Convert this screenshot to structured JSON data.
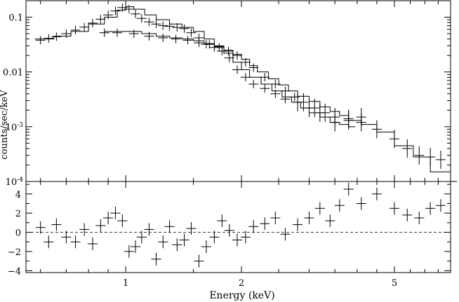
{
  "chart_data": [
    {
      "type": "scatter",
      "panel": "spectrum",
      "xscale": "log",
      "yscale": "log",
      "xlim": [
        0.55,
        7.0
      ],
      "ylim": [
        0.0001,
        0.2
      ],
      "ylabel": "counts/sec/keV",
      "ytick_labels": [
        {
          "value": 0.1,
          "label": "0.1",
          "exp": ""
        },
        {
          "value": 0.01,
          "label": "0.01",
          "exp": ""
        },
        {
          "value": 0.001,
          "label": "10",
          "exp": "-3"
        },
        {
          "value": 0.0001,
          "label": "10",
          "exp": "-4"
        }
      ],
      "series": [
        {
          "marker": "cross",
          "x": [
            0.6,
            0.63,
            0.66,
            0.7,
            0.74,
            0.78,
            0.82,
            0.86,
            0.9,
            0.94,
            0.98,
            1.02,
            1.06,
            1.1,
            1.15,
            1.2,
            1.25,
            1.3,
            1.36,
            1.42,
            1.48,
            1.55,
            1.62,
            1.7,
            1.78,
            1.86,
            1.95,
            2.05,
            2.15,
            2.3,
            2.45,
            2.6,
            2.8,
            3.0,
            3.2,
            3.5,
            3.8,
            4.1
          ],
          "y": [
            0.038,
            0.041,
            0.044,
            0.05,
            0.058,
            0.066,
            0.078,
            0.092,
            0.11,
            0.13,
            0.15,
            0.14,
            0.115,
            0.095,
            0.082,
            0.075,
            0.07,
            0.068,
            0.065,
            0.062,
            0.052,
            0.042,
            0.032,
            0.028,
            0.024,
            0.018,
            0.011,
            0.008,
            0.006,
            0.005,
            0.004,
            0.0032,
            0.0028,
            0.0022,
            0.0018,
            0.0012,
            0.0014,
            0.0015
          ]
        },
        {
          "marker": "cross",
          "x": [
            0.88,
            0.95,
            1.05,
            1.15,
            1.25,
            1.35,
            1.45,
            1.55,
            1.65,
            1.75,
            1.85,
            1.95,
            2.05,
            2.15,
            2.3,
            2.45,
            2.6,
            2.75,
            2.9,
            3.1,
            3.3,
            3.5,
            3.8,
            4.1,
            4.5,
            5.0,
            5.4,
            5.8,
            6.2,
            6.6
          ],
          "y": [
            0.052,
            0.052,
            0.05,
            0.045,
            0.042,
            0.04,
            0.038,
            0.034,
            0.032,
            0.028,
            0.024,
            0.02,
            0.015,
            0.012,
            0.008,
            0.006,
            0.0045,
            0.0035,
            0.0028,
            0.0022,
            0.0018,
            0.0015,
            0.0013,
            0.0012,
            0.0009,
            0.0006,
            0.0004,
            0.0003,
            0.00028,
            0.00025
          ]
        }
      ],
      "models": [
        {
          "style": "step",
          "x": [
            0.58,
            0.65,
            0.72,
            0.8,
            0.88,
            0.95,
            1.0,
            1.05,
            1.12,
            1.2,
            1.3,
            1.4,
            1.5,
            1.6,
            1.7,
            1.8,
            1.9,
            2.0,
            2.1,
            2.25,
            2.4,
            2.55,
            2.7,
            2.85,
            3.0,
            3.2,
            3.4,
            3.6,
            3.8
          ],
          "y": [
            0.04,
            0.045,
            0.055,
            0.075,
            0.1,
            0.135,
            0.155,
            0.14,
            0.11,
            0.09,
            0.075,
            0.065,
            0.055,
            0.04,
            0.03,
            0.022,
            0.015,
            0.011,
            0.008,
            0.006,
            0.0045,
            0.0035,
            0.0028,
            0.0022,
            0.0018,
            0.0015,
            0.0012,
            0.0011,
            0.001
          ]
        },
        {
          "style": "step",
          "x": [
            0.88,
            1.0,
            1.1,
            1.2,
            1.3,
            1.4,
            1.5,
            1.6,
            1.7,
            1.8,
            1.9,
            2.0,
            2.1,
            2.2,
            2.35,
            2.5,
            2.65,
            2.8,
            3.0,
            3.2,
            3.4,
            3.6,
            3.8,
            4.1,
            4.5,
            5.0,
            5.6,
            6.2,
            7.0
          ],
          "y": [
            0.055,
            0.055,
            0.05,
            0.045,
            0.042,
            0.04,
            0.037,
            0.033,
            0.029,
            0.025,
            0.021,
            0.017,
            0.013,
            0.01,
            0.0075,
            0.0058,
            0.0045,
            0.0036,
            0.0029,
            0.0023,
            0.0019,
            0.0016,
            0.0013,
            0.0011,
            0.0008,
            0.00045,
            0.00028,
            0.00015,
            0.0001
          ]
        }
      ]
    },
    {
      "type": "scatter",
      "panel": "residuals",
      "xscale": "log",
      "xlim": [
        0.55,
        7.0
      ],
      "ylim": [
        -4.2,
        5.3
      ],
      "xlabel": "Energy (keV)",
      "xtick_labels": [
        {
          "value": 1,
          "label": "1"
        },
        {
          "value": 2,
          "label": "2"
        },
        {
          "value": 5,
          "label": "5"
        }
      ],
      "ytick_labels": [
        {
          "value": 4,
          "label": "4"
        },
        {
          "value": 2,
          "label": "2"
        },
        {
          "value": 0,
          "label": "0"
        },
        {
          "value": -2,
          "label": "−2"
        },
        {
          "value": -4,
          "label": "−4"
        }
      ],
      "reference_line": {
        "y": 0,
        "style": "dashed"
      },
      "residuals": {
        "x": [
          0.6,
          0.63,
          0.66,
          0.7,
          0.74,
          0.78,
          0.82,
          0.86,
          0.9,
          0.94,
          0.98,
          1.02,
          1.06,
          1.1,
          1.15,
          1.2,
          1.25,
          1.3,
          1.36,
          1.42,
          1.48,
          1.55,
          1.62,
          1.7,
          1.78,
          1.86,
          1.95,
          2.05,
          2.15,
          2.3,
          2.45,
          2.6,
          2.8,
          3.0,
          3.2,
          3.4,
          3.6,
          3.8,
          4.1,
          4.5,
          5.0,
          5.4,
          5.8,
          6.2,
          6.6
        ],
        "y": [
          0.5,
          -1,
          0.8,
          -0.5,
          -1,
          0.3,
          -1.2,
          0.7,
          1.5,
          2,
          1.2,
          -2,
          -1.5,
          -0.5,
          0.3,
          -2.8,
          -1,
          0.6,
          -1.3,
          -0.8,
          0.4,
          -3,
          -1.5,
          -0.5,
          1.2,
          0.2,
          -0.8,
          -0.5,
          0.6,
          0.9,
          1.5,
          -0.2,
          0.8,
          1.5,
          2.5,
          1.2,
          2.8,
          4.5,
          3,
          4,
          2.5,
          1.8,
          1.5,
          2.5,
          2.8
        ]
      }
    }
  ]
}
